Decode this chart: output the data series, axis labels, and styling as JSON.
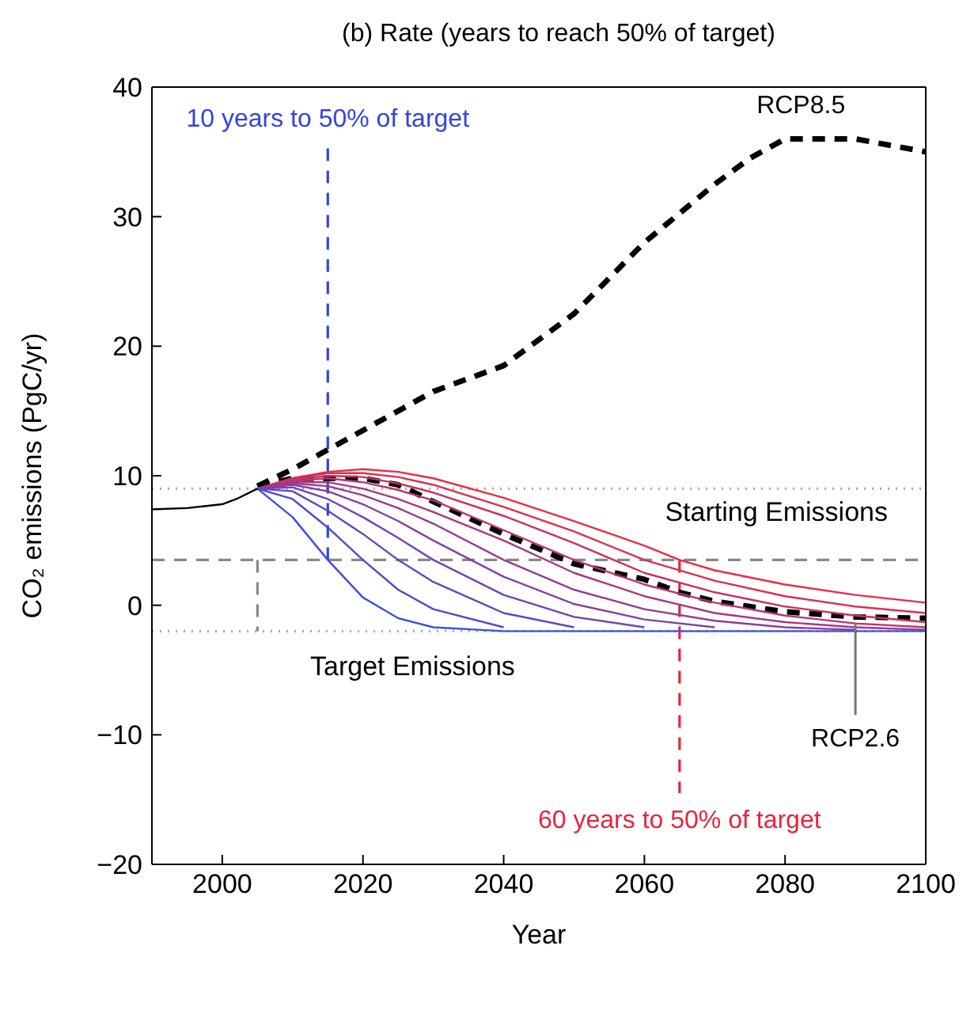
{
  "chart_data": {
    "type": "line",
    "title": "(b) Rate (years to reach 50% of target)",
    "xlabel": "Year",
    "ylabel": "CO₂ emissions (PgC/yr)",
    "xlim": [
      1990,
      2100
    ],
    "xticks": [
      2000,
      2020,
      2040,
      2060,
      2080,
      2100
    ],
    "ylim": [
      -20,
      40
    ],
    "yticks": [
      {
        "value": -20,
        "label": "−20"
      },
      {
        "value": -10,
        "label": "−10"
      },
      0,
      10,
      20,
      30,
      40
    ],
    "grid": false,
    "legend": false,
    "marker": "none",
    "ref_lines": [
      {
        "axis": "y",
        "value": 9,
        "label": "Starting Emissions",
        "color": "#aaaaaa",
        "line_style": "dotted"
      },
      {
        "axis": "y",
        "value": -2,
        "label": "Target Emissions",
        "color": "#aaaaaa",
        "line_style": "dotted"
      },
      {
        "axis": "y",
        "value": 3.5,
        "color": "#888888",
        "line_style": "dashed"
      }
    ],
    "series": [
      {
        "color": "#000000",
        "line_style": "solid",
        "x": [
          1990,
          1995,
          2000,
          2002,
          2005
        ],
        "values": [
          7.4,
          7.5,
          7.8,
          8.2,
          9.0
        ]
      },
      {
        "color": "#3a4fe0",
        "line_style": "solid",
        "x": [
          2005,
          2010,
          2015,
          2020,
          2025,
          2030,
          2040,
          2050,
          2060,
          2070,
          2080,
          2090,
          2100
        ],
        "values": [
          9,
          6.8,
          3.5,
          0.6,
          -1.0,
          -1.7,
          -2,
          -2,
          -2,
          -2,
          -2,
          -2,
          -2
        ]
      },
      {
        "color": "#4c4bd0",
        "line_style": "solid",
        "x": [
          2005,
          2010,
          2015,
          2020,
          2025,
          2030,
          2040
        ],
        "values": [
          9,
          8.2,
          6.0,
          3.5,
          1.2,
          -0.3,
          -1.7
        ]
      },
      {
        "color": "#5e48c1",
        "line_style": "solid",
        "x": [
          2005,
          2010,
          2015,
          2020,
          2025,
          2030,
          2040,
          2050
        ],
        "values": [
          9,
          8.8,
          7.3,
          5.5,
          3.5,
          1.8,
          -0.6,
          -1.7
        ]
      },
      {
        "color": "#7044b1",
        "line_style": "solid",
        "x": [
          2005,
          2010,
          2015,
          2020,
          2025,
          2030,
          2040,
          2050,
          2060
        ],
        "values": [
          9,
          9.1,
          8.2,
          6.8,
          5.2,
          3.5,
          0.8,
          -0.9,
          -1.7
        ]
      },
      {
        "color": "#8240a2",
        "line_style": "solid",
        "x": [
          2005,
          2010,
          2015,
          2020,
          2025,
          2030,
          2040,
          2050,
          2060,
          2070
        ],
        "values": [
          9,
          9.3,
          8.8,
          7.8,
          6.5,
          5.0,
          2.2,
          0.1,
          -1.1,
          -1.7
        ]
      },
      {
        "color": "#943c92",
        "line_style": "solid",
        "x": [
          2005,
          2010,
          2015,
          2020,
          2025,
          2030,
          2040,
          2050,
          2060,
          2070,
          2080,
          2090
        ],
        "values": [
          9,
          9.4,
          9.2,
          8.5,
          7.5,
          6.3,
          3.5,
          1.2,
          -0.3,
          -1.2,
          -1.7,
          -1.9
        ]
      },
      {
        "color": "#a63983",
        "line_style": "solid",
        "x": [
          2005,
          2010,
          2015,
          2020,
          2025,
          2030,
          2040,
          2050,
          2060,
          2070,
          2080,
          2090,
          2100
        ],
        "values": [
          9,
          9.5,
          9.5,
          9.0,
          8.2,
          7.2,
          5.0,
          2.5,
          0.7,
          -0.6,
          -1.3,
          -1.7,
          -1.9
        ]
      },
      {
        "color": "#b83573",
        "line_style": "solid",
        "x": [
          2005,
          2010,
          2015,
          2020,
          2025,
          2030,
          2040,
          2050,
          2060,
          2070,
          2080,
          2090,
          2100
        ],
        "values": [
          9,
          9.6,
          9.8,
          9.5,
          8.9,
          8.1,
          5.8,
          3.5,
          1.6,
          0.2,
          -0.8,
          -1.4,
          -1.7
        ]
      },
      {
        "color": "#ca3164",
        "line_style": "solid",
        "x": [
          2005,
          2010,
          2015,
          2020,
          2025,
          2030,
          2040,
          2050,
          2060,
          2070,
          2080,
          2090,
          2100
        ],
        "values": [
          9,
          9.7,
          10.0,
          9.9,
          9.4,
          8.7,
          6.9,
          4.8,
          2.5,
          1.0,
          -0.1,
          -0.8,
          -1.3
        ]
      },
      {
        "color": "#dc2e54",
        "line_style": "solid",
        "x": [
          2005,
          2010,
          2015,
          2020,
          2025,
          2030,
          2040,
          2050,
          2060,
          2070,
          2080,
          2090,
          2100
        ],
        "values": [
          9,
          9.8,
          10.2,
          10.2,
          9.9,
          9.3,
          7.6,
          5.7,
          3.5,
          1.9,
          0.7,
          -0.1,
          -0.6
        ]
      },
      {
        "color": "#ee2a45",
        "line_style": "solid",
        "x": [
          2005,
          2010,
          2015,
          2020,
          2025,
          2030,
          2040,
          2050,
          2060,
          2065,
          2070,
          2080,
          2090,
          2100
        ],
        "values": [
          9,
          9.8,
          10.3,
          10.5,
          10.3,
          9.8,
          8.3,
          6.5,
          4.6,
          3.5,
          2.7,
          1.6,
          0.8,
          0.2
        ]
      },
      {
        "name": "RCP8.5",
        "color": "#000000",
        "line_style": "dashed",
        "x": [
          2005,
          2010,
          2015,
          2020,
          2030,
          2040,
          2050,
          2060,
          2070,
          2075,
          2080,
          2090,
          2100
        ],
        "values": [
          9.2,
          10.5,
          12,
          13.5,
          16.5,
          18.5,
          22.5,
          28,
          32.5,
          34.5,
          36,
          36,
          35
        ]
      },
      {
        "name": "RCP2.6",
        "color": "#000000",
        "line_style": "dashed",
        "x": [
          2005,
          2010,
          2020,
          2025,
          2030,
          2040,
          2050,
          2060,
          2065,
          2070,
          2080,
          2090,
          2100
        ],
        "values": [
          9.2,
          9.8,
          9.8,
          9.3,
          8.0,
          5.5,
          3.2,
          2.0,
          1.0,
          0.3,
          -0.5,
          -0.9,
          -1.0
        ]
      },
      {
        "color": "#888888",
        "line_style": "dashed",
        "x": [
          2005,
          2005
        ],
        "values": [
          3.5,
          -2
        ]
      },
      {
        "name": "10 years to 50% of target",
        "color": "#3344dd",
        "line_style": "dashed",
        "x": [
          2015,
          2015
        ],
        "values": [
          3.5,
          35.7
        ]
      },
      {
        "name": "60 years to 50% of target",
        "color": "#e8243c",
        "line_style": "dashed",
        "x": [
          2065,
          2065
        ],
        "values": [
          3.5,
          -14.5
        ]
      }
    ]
  }
}
